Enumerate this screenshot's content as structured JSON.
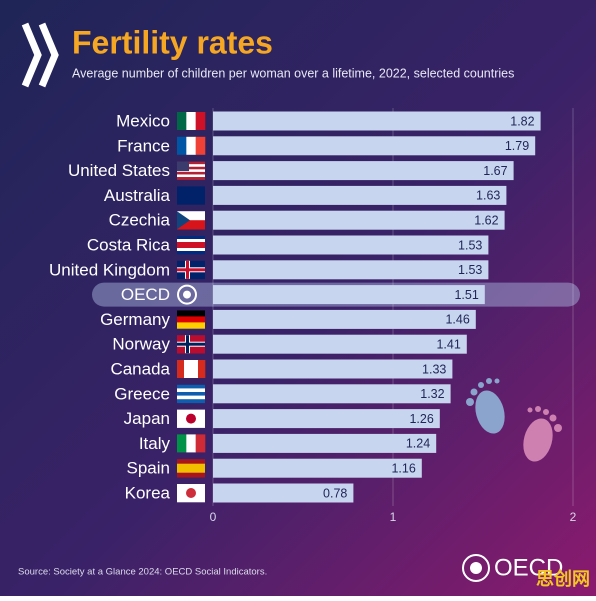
{
  "chart_data": {
    "type": "bar",
    "orientation": "horizontal",
    "title": "Fertility rates",
    "subtitle": "Average number of children per woman over a lifetime, 2022, selected countries",
    "categories": [
      "Mexico",
      "France",
      "United States",
      "Australia",
      "Czechia",
      "Costa Rica",
      "United Kingdom",
      "OECD",
      "Germany",
      "Norway",
      "Canada",
      "Greece",
      "Japan",
      "Italy",
      "Spain",
      "Korea"
    ],
    "values": [
      1.82,
      1.79,
      1.67,
      1.63,
      1.62,
      1.53,
      1.53,
      1.51,
      1.46,
      1.41,
      1.33,
      1.32,
      1.26,
      1.24,
      1.16,
      0.78
    ],
    "color": "#c8d5ef",
    "xlim": [
      0,
      2
    ],
    "xticks": [
      0,
      1,
      2
    ],
    "grid": true,
    "source": "Source: Society at a Glance 2024: OECD Social Indicators.",
    "logo_text": "OECD",
    "watermark": "思创网"
  }
}
